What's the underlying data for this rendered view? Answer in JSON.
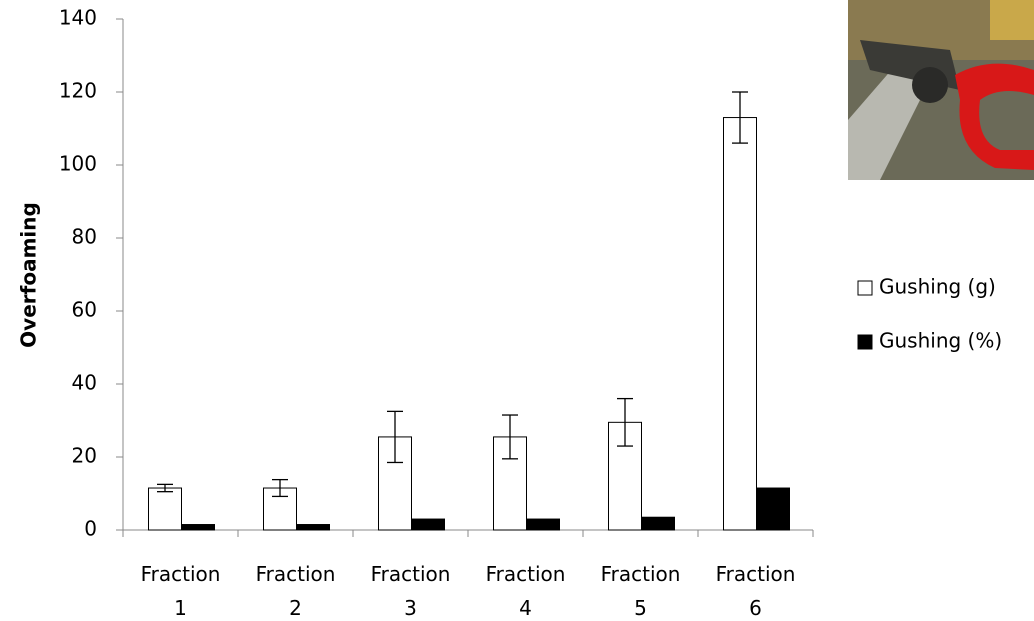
{
  "chart_data": {
    "type": "bar",
    "y_label": "Overfoaming",
    "categories": [
      "Fraction 1",
      "Fraction 2",
      "Fraction 3",
      "Fraction 4",
      "Fraction 5",
      "Fraction 6"
    ],
    "series": [
      {
        "name": "Gushing (g)",
        "color": "#ffffff",
        "values": [
          11.5,
          11.5,
          25.5,
          25.5,
          29.5,
          113
        ],
        "errors": [
          1,
          2.3,
          7,
          6,
          6.5,
          7
        ]
      },
      {
        "name": "Gushing (%)",
        "color": "#000000",
        "values": [
          1.5,
          1.5,
          3,
          3,
          3.5,
          11.5
        ]
      }
    ],
    "ylim": [
      0,
      140
    ],
    "yticks": [
      0,
      20,
      40,
      60,
      80,
      100,
      120,
      140
    ],
    "legend": "right"
  }
}
